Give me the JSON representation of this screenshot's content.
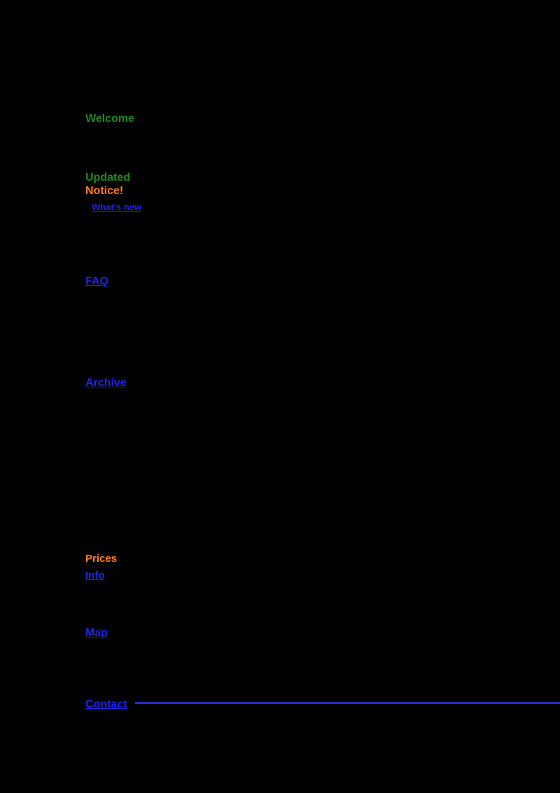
{
  "page": {
    "background": "#000000"
  },
  "colors": {
    "heading_green": "#1f8a1f",
    "highlight_orange": "#ff7f1f",
    "link_blue": "#2222ee",
    "rule_blue": "#2a2ac8"
  },
  "fragments": {
    "green_heading_top": {
      "text": "Welcome"
    },
    "green_heading_mid": {
      "text": "Updated"
    },
    "orange_note_top": {
      "text": "Notice!"
    },
    "blue_sub_link": {
      "text": "What's new"
    },
    "blue_link_1": {
      "text": "FAQ"
    },
    "blue_link_2": {
      "text": "Archive"
    },
    "orange_note_low": {
      "text": "Prices"
    },
    "blue_link_3": {
      "text": "Info"
    },
    "blue_link_4": {
      "text": "Map"
    },
    "blue_link_footer": {
      "text": "Contact"
    }
  },
  "rule": {
    "color": "#2a2ac8"
  }
}
